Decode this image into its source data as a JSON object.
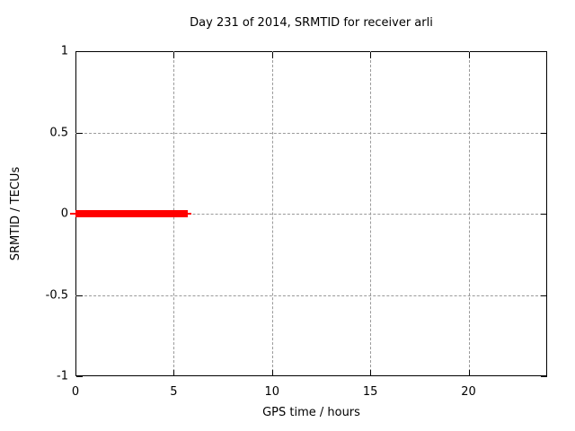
{
  "chart_data": {
    "type": "line",
    "title": "Day 231 of 2014, SRMTID for receiver arli",
    "xlabel": "GPS time / hours",
    "ylabel": "SRMTID / TECUs",
    "xlim": [
      0,
      24
    ],
    "ylim": [
      -1,
      1
    ],
    "xticks": [
      0,
      5,
      10,
      15,
      20
    ],
    "yticks": [
      -1,
      -0.5,
      0,
      0.5,
      1
    ],
    "grid": "dashed gray lines at interior major ticks, both axes",
    "legend": "none",
    "series": [
      {
        "name": "SRMTID",
        "color": "#ff0000",
        "style": "thick horizontal segment with thin tips",
        "y": 0,
        "x_start": 0,
        "x_end": 5.9,
        "x_end_thick": 5.7,
        "points": [
          [
            0,
            0
          ],
          [
            5.9,
            0
          ]
        ]
      }
    ],
    "colors": {
      "background": "#ffffff",
      "border": "#000000",
      "grid": "#9a9a9a",
      "text": "#000000",
      "series": "#ff0000"
    }
  }
}
